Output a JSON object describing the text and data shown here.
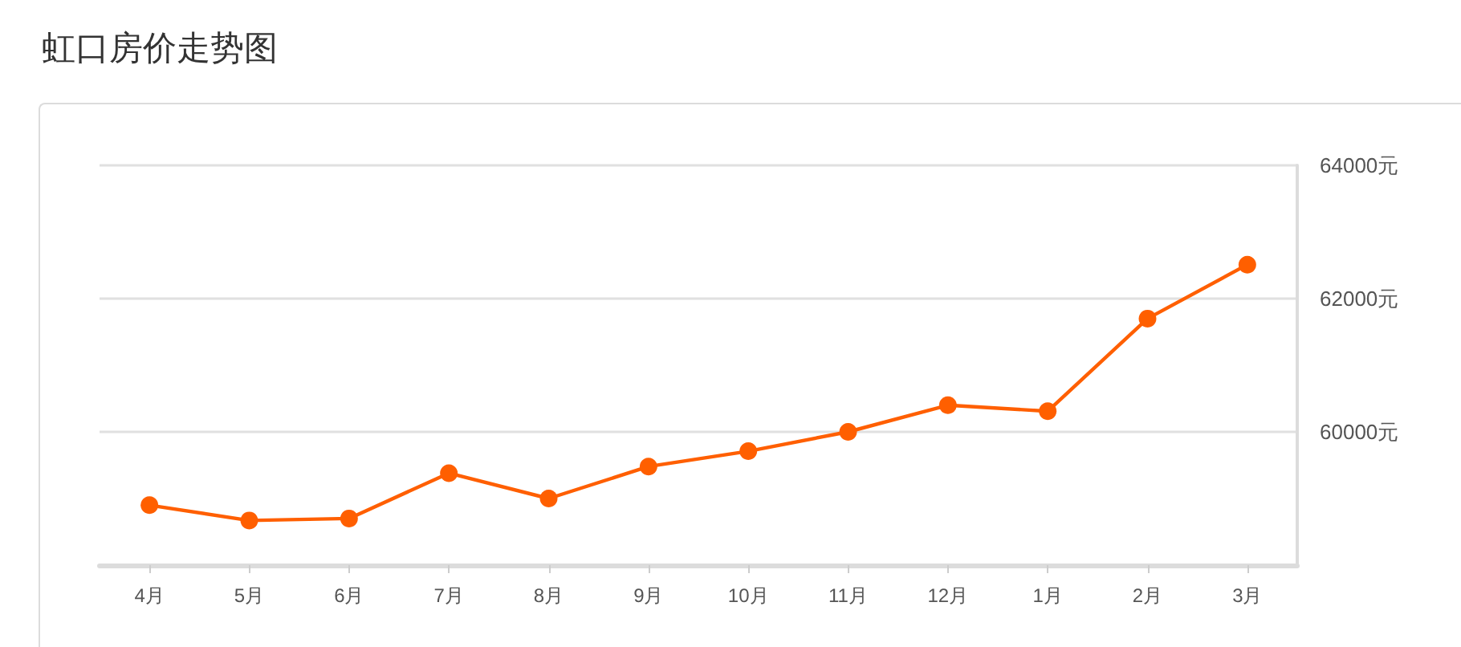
{
  "chart_data": {
    "type": "line",
    "title": "虹口房价走势图",
    "categories": [
      "4月",
      "5月",
      "6月",
      "7月",
      "8月",
      "9月",
      "10月",
      "11月",
      "12月",
      "1月",
      "2月",
      "3月"
    ],
    "series": [
      {
        "color": "#ff5f00",
        "values": [
          58900,
          58670,
          58700,
          59380,
          59000,
          59480,
          59710,
          60000,
          60400,
          60310,
          61700,
          62510
        ]
      }
    ],
    "ylim": [
      58000,
      64000
    ],
    "yticks": [
      {
        "value": 58000,
        "label": null
      },
      {
        "value": 60000,
        "label": "60000元"
      },
      {
        "value": 62000,
        "label": "62000元"
      },
      {
        "value": 64000,
        "label": "64000元"
      }
    ],
    "grid": "y",
    "marker": "circle",
    "line_style": "solid"
  }
}
